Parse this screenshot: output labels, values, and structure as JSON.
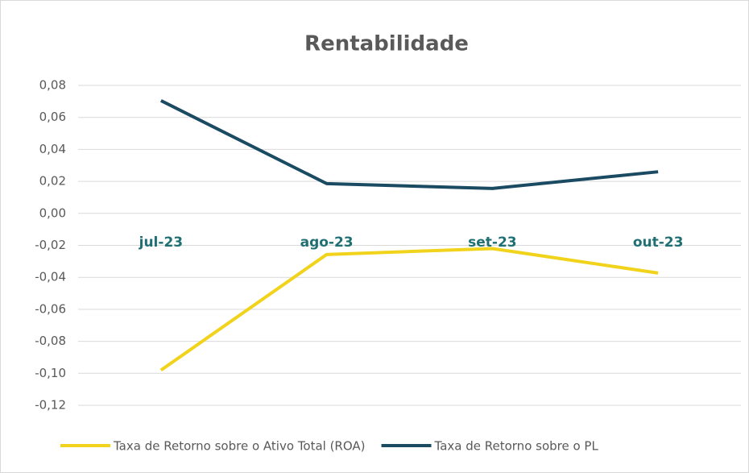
{
  "chart_data": {
    "type": "line",
    "title": "Rentabilidade",
    "categories": [
      "jul-23",
      "ago-23",
      "set-23",
      "out-23"
    ],
    "series": [
      {
        "name": "Taxa de Retorno sobre o Ativo Total (ROA)",
        "color": "#f2d31b",
        "values": [
          -0.098,
          -0.0257,
          -0.022,
          -0.0373
        ]
      },
      {
        "name": "Taxa de Retorno sobre o PL",
        "color": "#1b4a63",
        "values": [
          0.0705,
          0.0186,
          0.0156,
          0.026
        ]
      }
    ],
    "ylim": [
      -0.12,
      0.08
    ],
    "yticks": [
      {
        "value": -0.12,
        "label": "-0,12"
      },
      {
        "value": -0.1,
        "label": "-0,10"
      },
      {
        "value": -0.08,
        "label": "-0,08"
      },
      {
        "value": -0.06,
        "label": "-0,06"
      },
      {
        "value": -0.04,
        "label": "-0,04"
      },
      {
        "value": -0.02,
        "label": "-0,02"
      },
      {
        "value": 0,
        "label": "0,00"
      },
      {
        "value": 0.02,
        "label": "0,02"
      },
      {
        "value": 0.04,
        "label": "0,04"
      },
      {
        "value": 0.06,
        "label": "0,06"
      },
      {
        "value": 0.08,
        "label": "0,08"
      }
    ],
    "grid": true,
    "legend": "bottom"
  }
}
